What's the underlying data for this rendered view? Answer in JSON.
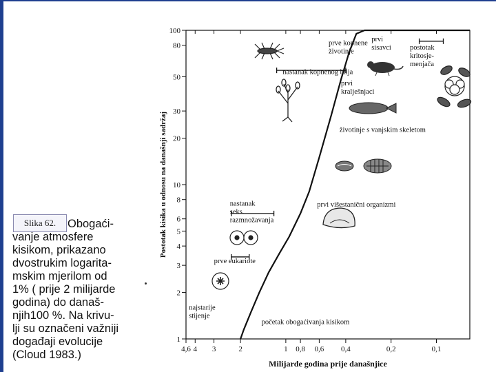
{
  "figure_label": "Slika 62.",
  "caption_lines": [
    "Obogaći-",
    "vanje atmosfere",
    "kisikom, prikazano",
    "dvostrukim logarita-",
    "mskim mjerilom od",
    "1% ( prije 2 milijarde",
    "godina) do današ-",
    "njih100 %. Na krivu-",
    "lji su označeni važniji",
    "događaji evolucije",
    "(Cloud 1983.)"
  ],
  "chart_data": {
    "type": "line",
    "title": "",
    "xlabel": "Milijarde godina prije današnjice",
    "ylabel": "Postotak kisika u odnosu na današnji sadržaj",
    "x_scale": "log",
    "y_scale": "log",
    "xlim": [
      4.6,
      0.06
    ],
    "ylim": [
      1,
      100
    ],
    "x_ticks": [
      {
        "value": 4.6,
        "label": "4,6"
      },
      {
        "value": 4,
        "label": "4"
      },
      {
        "value": 3,
        "label": "3"
      },
      {
        "value": 2,
        "label": "2"
      },
      {
        "value": 1,
        "label": "1"
      },
      {
        "value": 0.8,
        "label": "0,8"
      },
      {
        "value": 0.6,
        "label": "0,6"
      },
      {
        "value": 0.4,
        "label": "0,4"
      },
      {
        "value": 0.2,
        "label": "0,2"
      },
      {
        "value": 0.1,
        "label": "0,1"
      }
    ],
    "y_ticks": [
      1,
      2,
      3,
      4,
      5,
      6,
      8,
      10,
      20,
      30,
      50,
      80,
      100
    ],
    "curve": [
      {
        "x": 2.0,
        "y": 1.0
      },
      {
        "x": 1.9,
        "y": 1.15
      },
      {
        "x": 1.7,
        "y": 1.5
      },
      {
        "x": 1.5,
        "y": 2.0
      },
      {
        "x": 1.3,
        "y": 2.7
      },
      {
        "x": 1.1,
        "y": 3.6
      },
      {
        "x": 0.95,
        "y": 4.6
      },
      {
        "x": 0.8,
        "y": 6.5
      },
      {
        "x": 0.7,
        "y": 9
      },
      {
        "x": 0.6,
        "y": 15
      },
      {
        "x": 0.5,
        "y": 28
      },
      {
        "x": 0.43,
        "y": 48
      },
      {
        "x": 0.38,
        "y": 72
      },
      {
        "x": 0.34,
        "y": 95
      },
      {
        "x": 0.3,
        "y": 100
      },
      {
        "x": 0.06,
        "y": 100
      }
    ],
    "annotations": [
      {
        "text": [
          "prve kopnene",
          "životinje"
        ],
        "x": 0.52,
        "y": 80
      },
      {
        "text": [
          "prvi",
          "sisavci"
        ],
        "x": 0.27,
        "y": 85
      },
      {
        "text": [
          "postotak",
          "kritosje-",
          "menjača"
        ],
        "x": 0.15,
        "y": 75
      },
      {
        "text": [
          "nastanak kopnenog bilja"
        ],
        "x": 1.05,
        "y": 52
      },
      {
        "text": [
          "prvi",
          "kralješnjaci"
        ],
        "x": 0.43,
        "y": 44
      },
      {
        "text": [
          "životinje s vanjskim skeletom"
        ],
        "x": 0.44,
        "y": 22
      },
      {
        "text": [
          "prvi višestanični organizmi"
        ],
        "x": 0.62,
        "y": 7.2
      },
      {
        "text": [
          "nastanak",
          "seks.",
          "razmnožavanja"
        ],
        "x": 2.35,
        "y": 7.3
      },
      {
        "text": [
          "prve eukariote"
        ],
        "x": 3.0,
        "y": 3.1
      },
      {
        "text": [
          "najstarije",
          "stijenje"
        ],
        "x": 4.4,
        "y": 1.55
      },
      {
        "text": [
          "početak obogaćivanja kisikom"
        ],
        "x": 1.45,
        "y": 1.25
      }
    ],
    "ranges": [
      {
        "x": [
          1.15,
          0.4
        ],
        "y": 55
      },
      {
        "x": [
          0.13,
          0.09
        ],
        "y": 85
      },
      {
        "x": [
          2.3,
          1.2
        ],
        "y": 6.5
      },
      {
        "x": [
          2.3,
          1.75
        ],
        "y": 3.4
      }
    ],
    "grid": false,
    "legend": "none"
  },
  "icon_names": [
    "insect-icon",
    "rodent-icon",
    "flower-icon",
    "plant-icon",
    "fish-icon",
    "shell-icon",
    "trilobite-icon",
    "jellyfish-icon",
    "cell-pair-icon",
    "eukaryote-cell-icon"
  ]
}
